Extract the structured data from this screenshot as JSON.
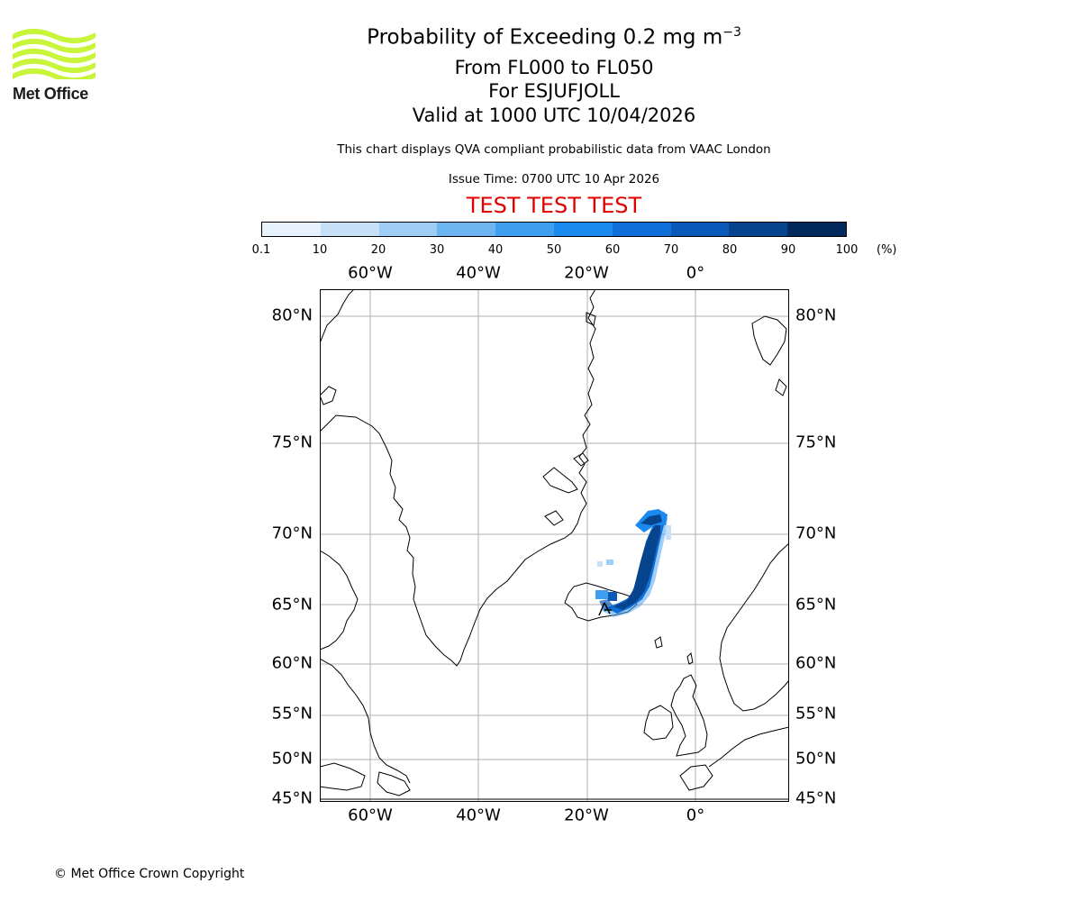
{
  "logo": {
    "text": "Met Office",
    "wave_color": "#c8f53a"
  },
  "header": {
    "title_prefix": "Probability of Exceeding 0.2 mg m",
    "title_exponent": "−3",
    "levels": "From FL000 to FL050",
    "location": "For ESJUFJOLL",
    "valid": "Valid at 1000 UTC 10/04/2026",
    "note": "This chart displays QVA compliant probabilistic data from VAAC London",
    "issue": "Issue Time: 0700 UTC 10 Apr 2026",
    "test_banner": "TEST TEST TEST",
    "test_color": "#e00000"
  },
  "colorbar": {
    "ticks": [
      "0.1",
      "10",
      "20",
      "30",
      "40",
      "50",
      "60",
      "70",
      "80",
      "90",
      "100"
    ],
    "unit": "(%)",
    "colors": [
      "#e8f2fc",
      "#c6e0f8",
      "#9ecdf6",
      "#6db5f1",
      "#3f9ef0",
      "#1a8af0",
      "#0f6ed8",
      "#0a58b8",
      "#06448e",
      "#032a5c"
    ]
  },
  "map": {
    "lon_labels_top": [
      "60°W",
      "40°W",
      "20°W",
      "0°"
    ],
    "lon_labels_bottom": [
      "60°W",
      "40°W",
      "20°W",
      "0°"
    ],
    "lat_labels_left": [
      "80°N",
      "75°N",
      "70°N",
      "65°N",
      "60°N",
      "55°N",
      "50°N",
      "45°N"
    ],
    "lat_labels_right": [
      "80°N",
      "75°N",
      "70°N",
      "65°N",
      "60°N",
      "55°N",
      "50°N",
      "45°N"
    ]
  },
  "footer": {
    "copyright": "© Met Office Crown Copyright"
  }
}
